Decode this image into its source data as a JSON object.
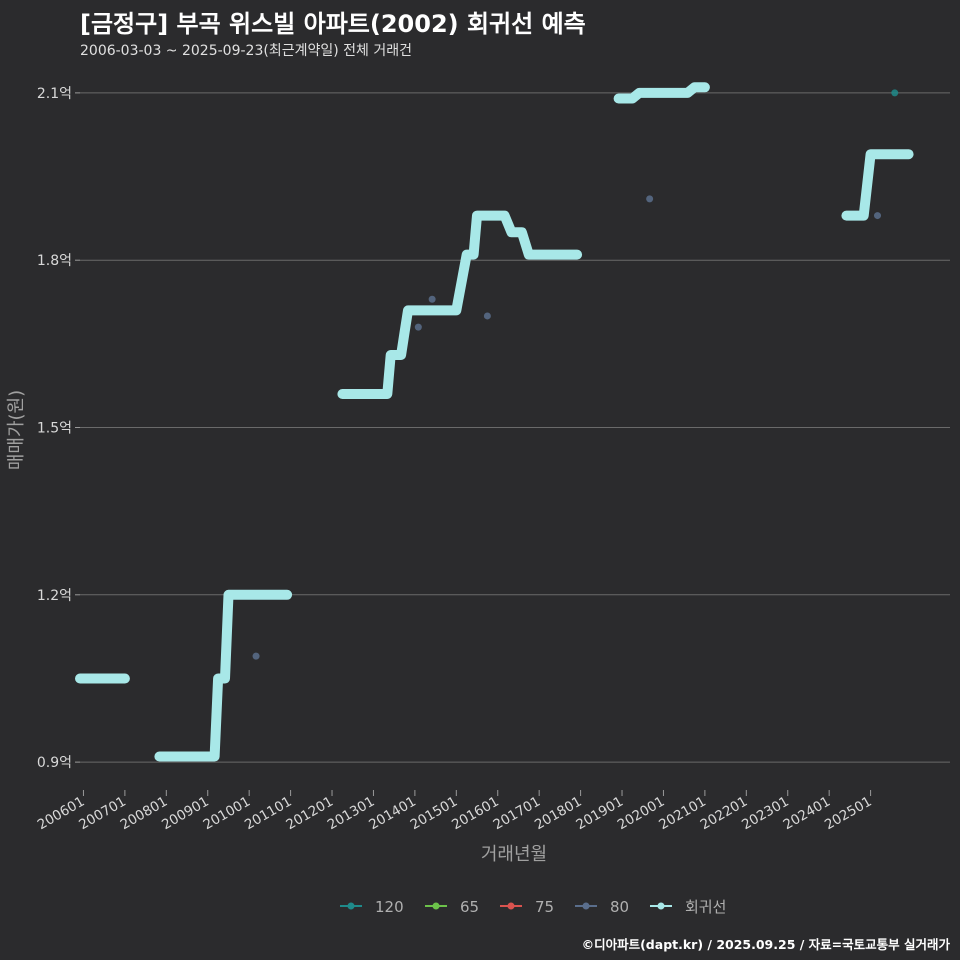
{
  "chart_data": {
    "type": "line",
    "title": "[금정구] 부곡 위스빌 아파트(2002) 회귀선 예측",
    "subtitle": "2006-03-03 ~ 2025-09-23(최근계약일) 전체 거래건",
    "xlabel": "거래년월",
    "ylabel": "매매가(원)",
    "x_range": [
      "2005-12",
      "2026-12"
    ],
    "ylim": [
      0.85,
      2.15
    ],
    "y_ticks": [
      0.9,
      1.2,
      1.5,
      1.8,
      2.1
    ],
    "y_tick_labels": [
      "0.9억",
      "1.2억",
      "1.5억",
      "1.8억",
      "2.1억"
    ],
    "x_tick_labels": [
      "200601",
      "200701",
      "200801",
      "200901",
      "201001",
      "201101",
      "201201",
      "201301",
      "201401",
      "201501",
      "201601",
      "201701",
      "201801",
      "201901",
      "202001",
      "202101",
      "202201",
      "202301",
      "202401",
      "202501"
    ],
    "grid": true,
    "legend_placement": "bottom",
    "legend": [
      {
        "name": "120",
        "color": "#1f8a8a"
      },
      {
        "name": "65",
        "color": "#6cc24a"
      },
      {
        "name": "75",
        "color": "#d9534f"
      },
      {
        "name": "80",
        "color": "#5a6e8c"
      },
      {
        "name": "회귀선",
        "color": "#a8e8e8"
      }
    ],
    "series": [
      {
        "name": "회귀선",
        "color": "#a8e8e8",
        "segments": [
          [
            [
              "2005-12",
              1.05
            ],
            [
              "2007-01",
              1.05
            ]
          ],
          [
            [
              "2007-11",
              0.91
            ],
            [
              "2009-03",
              0.91
            ],
            [
              "2009-04",
              1.05
            ],
            [
              "2009-06",
              1.05
            ],
            [
              "2009-07",
              1.2
            ],
            [
              "2010-12",
              1.2
            ]
          ],
          [
            [
              "2012-04",
              1.56
            ],
            [
              "2013-05",
              1.56
            ],
            [
              "2013-06",
              1.63
            ],
            [
              "2013-09",
              1.63
            ],
            [
              "2013-10",
              1.67
            ],
            [
              "2013-11",
              1.71
            ],
            [
              "2015-01",
              1.71
            ],
            [
              "2015-04",
              1.81
            ],
            [
              "2015-06",
              1.81
            ],
            [
              "2015-07",
              1.88
            ],
            [
              "2016-03",
              1.88
            ],
            [
              "2016-05",
              1.85
            ],
            [
              "2016-08",
              1.85
            ],
            [
              "2016-10",
              1.81
            ],
            [
              "2017-12",
              1.81
            ]
          ],
          [
            [
              "2018-12",
              2.09
            ],
            [
              "2019-04",
              2.09
            ],
            [
              "2019-06",
              2.1
            ],
            [
              "2020-08",
              2.1
            ],
            [
              "2020-10",
              2.11
            ],
            [
              "2021-01",
              2.11
            ]
          ],
          [
            [
              "2024-06",
              1.88
            ],
            [
              "2024-11",
              1.88
            ],
            [
              "2025-01",
              1.99
            ],
            [
              "2025-12",
              1.99
            ]
          ]
        ]
      },
      {
        "name": "80",
        "color": "#5a6e8c",
        "points": [
          [
            "2010-03",
            1.09
          ],
          [
            "2014-02",
            1.68
          ],
          [
            "2014-06",
            1.73
          ],
          [
            "2015-10",
            1.7
          ],
          [
            "2019-09",
            1.91
          ],
          [
            "2025-03",
            1.88
          ]
        ]
      },
      {
        "name": "120",
        "color": "#1f8a8a",
        "points": [
          [
            "2025-08",
            2.1
          ]
        ]
      }
    ]
  },
  "credit": "©디아파트(dapt.kr) / 2025.09.25 / 자료=국토교통부 실거래가"
}
